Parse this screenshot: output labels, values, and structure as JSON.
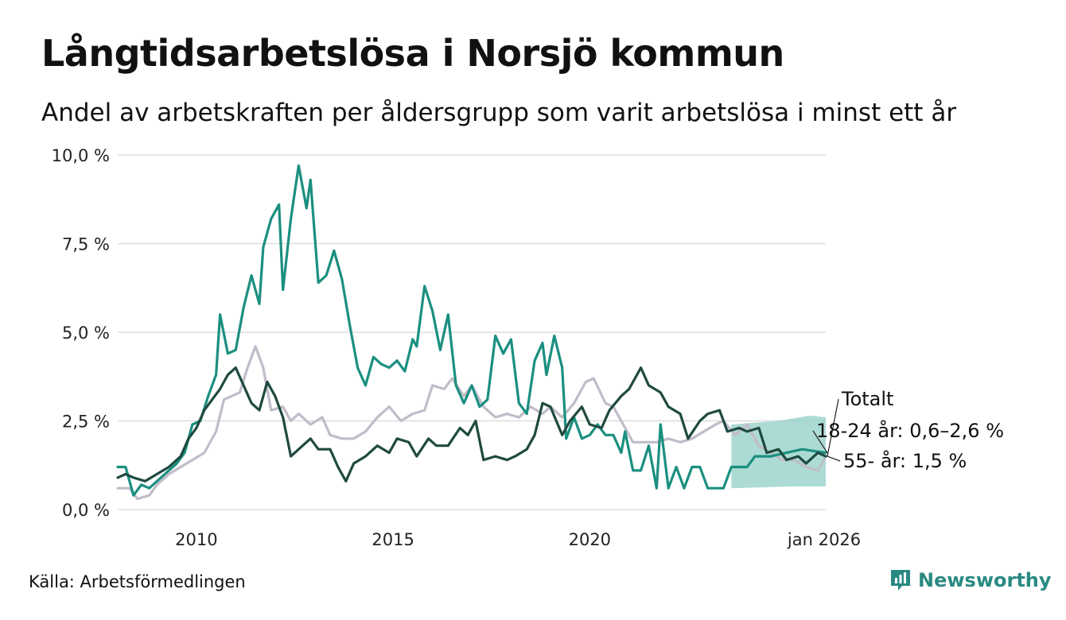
{
  "header": {
    "title": "Långtidsarbetslösa i Norsjö kommun",
    "subtitle": "Andel av arbetskraften per åldersgrupp som varit arbetslösa i minst ett år"
  },
  "footer": {
    "source": "Källa: Arbetsförmedlingen",
    "brand": "Newsworthy"
  },
  "colors": {
    "totalt": "#c1bcc9",
    "age_18_24": "#1b8f80",
    "age_55": "#1f4a40",
    "band": "#8fcfc5",
    "grid": "#dddddd",
    "brand": "#2a8a83"
  },
  "chart_data": {
    "type": "line",
    "title": "Långtidsarbetslösa i Norsjö kommun",
    "xlabel": "",
    "ylabel": "",
    "xlim": [
      2008.0,
      2026.0
    ],
    "ylim": [
      0,
      10
    ],
    "y_ticks": [
      0,
      2.5,
      5,
      7.5,
      10
    ],
    "y_tick_labels": [
      "0,0 %",
      "2,5 %",
      "5,0 %",
      "7,5 %",
      "10,0 %"
    ],
    "x_ticks": [
      2010,
      2015,
      2020,
      2026
    ],
    "x_tick_labels": [
      "2010",
      "2015",
      "2020",
      "jan 2026"
    ],
    "series": [
      {
        "name": "Totalt",
        "label": "Totalt",
        "color_key": "totalt",
        "points": [
          [
            2008.0,
            0.6
          ],
          [
            2008.3,
            0.6
          ],
          [
            2008.5,
            0.3
          ],
          [
            2008.8,
            0.4
          ],
          [
            2009.0,
            0.7
          ],
          [
            2009.3,
            1.0
          ],
          [
            2009.6,
            1.2
          ],
          [
            2009.9,
            1.4
          ],
          [
            2010.2,
            1.6
          ],
          [
            2010.5,
            2.2
          ],
          [
            2010.7,
            3.1
          ],
          [
            2010.9,
            3.2
          ],
          [
            2011.1,
            3.3
          ],
          [
            2011.3,
            4.0
          ],
          [
            2011.5,
            4.6
          ],
          [
            2011.7,
            4.0
          ],
          [
            2011.9,
            2.8
          ],
          [
            2012.2,
            2.9
          ],
          [
            2012.4,
            2.5
          ],
          [
            2012.6,
            2.7
          ],
          [
            2012.9,
            2.4
          ],
          [
            2013.2,
            2.6
          ],
          [
            2013.4,
            2.1
          ],
          [
            2013.7,
            2.0
          ],
          [
            2014.0,
            2.0
          ],
          [
            2014.3,
            2.2
          ],
          [
            2014.6,
            2.6
          ],
          [
            2014.9,
            2.9
          ],
          [
            2015.2,
            2.5
          ],
          [
            2015.5,
            2.7
          ],
          [
            2015.8,
            2.8
          ],
          [
            2016.0,
            3.5
          ],
          [
            2016.3,
            3.4
          ],
          [
            2016.5,
            3.7
          ],
          [
            2016.8,
            3.2
          ],
          [
            2017.0,
            3.5
          ],
          [
            2017.3,
            2.9
          ],
          [
            2017.6,
            2.6
          ],
          [
            2017.9,
            2.7
          ],
          [
            2018.2,
            2.6
          ],
          [
            2018.5,
            2.9
          ],
          [
            2018.8,
            2.7
          ],
          [
            2019.0,
            2.9
          ],
          [
            2019.3,
            2.6
          ],
          [
            2019.6,
            3.0
          ],
          [
            2019.9,
            3.6
          ],
          [
            2020.1,
            3.7
          ],
          [
            2020.4,
            3.0
          ],
          [
            2020.6,
            2.9
          ],
          [
            2020.9,
            2.3
          ],
          [
            2021.1,
            1.9
          ],
          [
            2021.4,
            1.9
          ],
          [
            2021.7,
            1.9
          ],
          [
            2022.0,
            2.0
          ],
          [
            2022.3,
            1.9
          ],
          [
            2022.6,
            2.0
          ],
          [
            2022.9,
            2.2
          ],
          [
            2023.2,
            2.4
          ],
          [
            2023.4,
            2.5
          ],
          [
            2023.7,
            2.1
          ],
          [
            2024.0,
            2.4
          ],
          [
            2024.3,
            1.8
          ],
          [
            2024.6,
            1.6
          ],
          [
            2024.9,
            1.4
          ],
          [
            2025.2,
            1.4
          ],
          [
            2025.5,
            1.2
          ],
          [
            2025.8,
            1.1
          ],
          [
            2026.0,
            1.5
          ]
        ]
      },
      {
        "name": "18-24 år",
        "label": "18-24 år: 0,6–2,6 %",
        "color_key": "age_18_24",
        "band_lower": 0.6,
        "band_upper": 2.6,
        "band_start": 2023.6,
        "points": [
          [
            2008.0,
            1.2
          ],
          [
            2008.2,
            1.2
          ],
          [
            2008.4,
            0.4
          ],
          [
            2008.6,
            0.7
          ],
          [
            2008.8,
            0.6
          ],
          [
            2009.0,
            0.8
          ],
          [
            2009.3,
            1.1
          ],
          [
            2009.5,
            1.3
          ],
          [
            2009.7,
            1.6
          ],
          [
            2009.9,
            2.4
          ],
          [
            2010.1,
            2.5
          ],
          [
            2010.3,
            3.2
          ],
          [
            2010.5,
            3.8
          ],
          [
            2010.6,
            5.5
          ],
          [
            2010.8,
            4.4
          ],
          [
            2011.0,
            4.5
          ],
          [
            2011.2,
            5.7
          ],
          [
            2011.4,
            6.6
          ],
          [
            2011.6,
            5.8
          ],
          [
            2011.7,
            7.4
          ],
          [
            2011.9,
            8.2
          ],
          [
            2012.1,
            8.6
          ],
          [
            2012.2,
            6.2
          ],
          [
            2012.4,
            8.2
          ],
          [
            2012.6,
            9.7
          ],
          [
            2012.8,
            8.5
          ],
          [
            2012.9,
            9.3
          ],
          [
            2013.1,
            6.4
          ],
          [
            2013.3,
            6.6
          ],
          [
            2013.5,
            7.3
          ],
          [
            2013.7,
            6.5
          ],
          [
            2013.9,
            5.2
          ],
          [
            2014.1,
            4.0
          ],
          [
            2014.3,
            3.5
          ],
          [
            2014.5,
            4.3
          ],
          [
            2014.7,
            4.1
          ],
          [
            2014.9,
            4.0
          ],
          [
            2015.1,
            4.2
          ],
          [
            2015.3,
            3.9
          ],
          [
            2015.5,
            4.8
          ],
          [
            2015.6,
            4.6
          ],
          [
            2015.8,
            6.3
          ],
          [
            2016.0,
            5.6
          ],
          [
            2016.2,
            4.5
          ],
          [
            2016.4,
            5.5
          ],
          [
            2016.6,
            3.5
          ],
          [
            2016.8,
            3.0
          ],
          [
            2017.0,
            3.5
          ],
          [
            2017.2,
            2.9
          ],
          [
            2017.4,
            3.1
          ],
          [
            2017.6,
            4.9
          ],
          [
            2017.8,
            4.4
          ],
          [
            2018.0,
            4.8
          ],
          [
            2018.2,
            3.0
          ],
          [
            2018.4,
            2.7
          ],
          [
            2018.6,
            4.2
          ],
          [
            2018.8,
            4.7
          ],
          [
            2018.9,
            3.8
          ],
          [
            2019.1,
            4.9
          ],
          [
            2019.3,
            4.0
          ],
          [
            2019.4,
            2.0
          ],
          [
            2019.6,
            2.6
          ],
          [
            2019.8,
            2.0
          ],
          [
            2020.0,
            2.1
          ],
          [
            2020.2,
            2.4
          ],
          [
            2020.4,
            2.1
          ],
          [
            2020.6,
            2.1
          ],
          [
            2020.8,
            1.6
          ],
          [
            2020.9,
            2.2
          ],
          [
            2021.1,
            1.1
          ],
          [
            2021.3,
            1.1
          ],
          [
            2021.5,
            1.8
          ],
          [
            2021.7,
            0.6
          ],
          [
            2021.8,
            2.4
          ],
          [
            2022.0,
            0.6
          ],
          [
            2022.2,
            1.2
          ],
          [
            2022.4,
            0.6
          ],
          [
            2022.6,
            1.2
          ],
          [
            2022.8,
            1.2
          ],
          [
            2023.0,
            0.6
          ],
          [
            2023.2,
            0.6
          ],
          [
            2023.4,
            0.6
          ],
          [
            2023.6,
            1.2
          ],
          [
            2023.8,
            1.2
          ],
          [
            2024.0,
            1.2
          ],
          [
            2024.2,
            1.5
          ],
          [
            2024.6,
            1.5
          ],
          [
            2025.0,
            1.6
          ],
          [
            2025.4,
            1.7
          ],
          [
            2026.0,
            1.6
          ]
        ]
      },
      {
        "name": "55- år",
        "label": "55- år: 1,5 %",
        "color_key": "age_55",
        "points": [
          [
            2008.0,
            0.9
          ],
          [
            2008.2,
            1.0
          ],
          [
            2008.4,
            0.9
          ],
          [
            2008.7,
            0.8
          ],
          [
            2009.0,
            1.0
          ],
          [
            2009.3,
            1.2
          ],
          [
            2009.6,
            1.5
          ],
          [
            2009.8,
            2.0
          ],
          [
            2010.0,
            2.3
          ],
          [
            2010.2,
            2.8
          ],
          [
            2010.4,
            3.1
          ],
          [
            2010.6,
            3.4
          ],
          [
            2010.8,
            3.8
          ],
          [
            2011.0,
            4.0
          ],
          [
            2011.2,
            3.5
          ],
          [
            2011.4,
            3.0
          ],
          [
            2011.6,
            2.8
          ],
          [
            2011.8,
            3.6
          ],
          [
            2012.0,
            3.2
          ],
          [
            2012.2,
            2.6
          ],
          [
            2012.4,
            1.5
          ],
          [
            2012.7,
            1.8
          ],
          [
            2012.9,
            2.0
          ],
          [
            2013.1,
            1.7
          ],
          [
            2013.4,
            1.7
          ],
          [
            2013.6,
            1.2
          ],
          [
            2013.8,
            0.8
          ],
          [
            2014.0,
            1.3
          ],
          [
            2014.3,
            1.5
          ],
          [
            2014.6,
            1.8
          ],
          [
            2014.9,
            1.6
          ],
          [
            2015.1,
            2.0
          ],
          [
            2015.4,
            1.9
          ],
          [
            2015.6,
            1.5
          ],
          [
            2015.9,
            2.0
          ],
          [
            2016.1,
            1.8
          ],
          [
            2016.4,
            1.8
          ],
          [
            2016.7,
            2.3
          ],
          [
            2016.9,
            2.1
          ],
          [
            2017.1,
            2.5
          ],
          [
            2017.3,
            1.4
          ],
          [
            2017.6,
            1.5
          ],
          [
            2017.9,
            1.4
          ],
          [
            2018.1,
            1.5
          ],
          [
            2018.4,
            1.7
          ],
          [
            2018.6,
            2.1
          ],
          [
            2018.8,
            3.0
          ],
          [
            2019.0,
            2.9
          ],
          [
            2019.3,
            2.1
          ],
          [
            2019.5,
            2.5
          ],
          [
            2019.8,
            2.9
          ],
          [
            2020.0,
            2.4
          ],
          [
            2020.3,
            2.3
          ],
          [
            2020.5,
            2.8
          ],
          [
            2020.8,
            3.2
          ],
          [
            2021.0,
            3.4
          ],
          [
            2021.3,
            4.0
          ],
          [
            2021.5,
            3.5
          ],
          [
            2021.8,
            3.3
          ],
          [
            2022.0,
            2.9
          ],
          [
            2022.3,
            2.7
          ],
          [
            2022.5,
            2.0
          ],
          [
            2022.8,
            2.5
          ],
          [
            2023.0,
            2.7
          ],
          [
            2023.3,
            2.8
          ],
          [
            2023.5,
            2.2
          ],
          [
            2023.8,
            2.3
          ],
          [
            2024.0,
            2.2
          ],
          [
            2024.3,
            2.3
          ],
          [
            2024.5,
            1.6
          ],
          [
            2024.8,
            1.7
          ],
          [
            2025.0,
            1.4
          ],
          [
            2025.3,
            1.5
          ],
          [
            2025.5,
            1.3
          ],
          [
            2025.8,
            1.6
          ],
          [
            2026.0,
            1.5
          ]
        ]
      }
    ],
    "legend": "direct labels at right end"
  }
}
